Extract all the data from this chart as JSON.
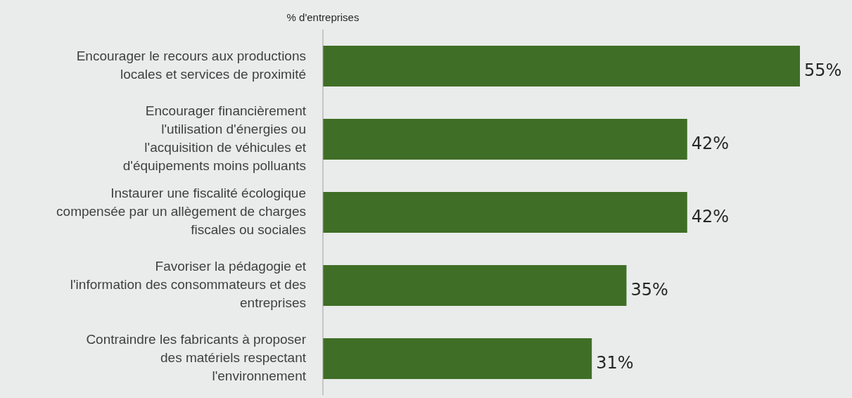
{
  "chart_data": {
    "type": "bar",
    "orientation": "horizontal",
    "ylabel": "% d'entreprises",
    "categories": [
      "Encourager le recours aux productions locales et services de proximité",
      "Encourager financièrement l'utilisation d'énergies ou l'acquisition de véhicules et d'équipements moins polluants",
      "Instaurer une fiscalité écologique compensée par un allègement de charges fiscales ou sociales",
      "Favoriser la pédagogie et l'information des consommateurs et des entreprises",
      "Contraindre les fabricants à proposer des matériels respectant l'environnement"
    ],
    "values": [
      55,
      42,
      42,
      35,
      31
    ],
    "value_labels": [
      "55%",
      "42%",
      "42%",
      "35%",
      "31%"
    ],
    "color": "#3f6e26"
  }
}
